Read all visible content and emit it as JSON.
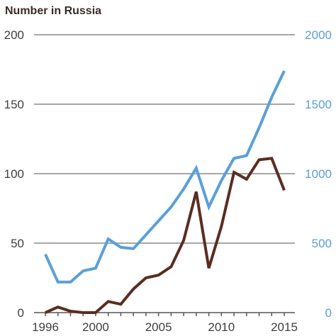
{
  "chart_data": {
    "type": "line",
    "title": "Number in Russia",
    "x": [
      1996,
      1997,
      1998,
      1999,
      2000,
      2001,
      2002,
      2003,
      2004,
      2005,
      2006,
      2007,
      2008,
      2009,
      2010,
      2011,
      2012,
      2013,
      2014,
      2015
    ],
    "x_ticks": [
      "1996",
      "2000",
      "2005",
      "2010",
      "2015"
    ],
    "xlim": [
      1996,
      2015
    ],
    "y_left": {
      "ylim": [
        0,
        200
      ],
      "ticks": [
        "0",
        "50",
        "100",
        "150",
        "200"
      ]
    },
    "y_right": {
      "ylim": [
        0,
        2000
      ],
      "ticks": [
        "0",
        "500",
        "1000",
        "1500",
        "2000"
      ]
    },
    "grid": true,
    "series": [
      {
        "axis": "left",
        "color": "#5a2e22",
        "values": [
          0,
          4,
          1,
          0,
          0,
          8,
          6,
          17,
          25,
          27,
          33,
          52,
          87,
          32,
          62,
          101,
          96,
          110,
          111,
          88
        ]
      },
      {
        "axis": "right",
        "color": "#5aa0d8",
        "values": [
          420,
          220,
          220,
          300,
          320,
          530,
          470,
          460,
          560,
          660,
          760,
          890,
          1040,
          760,
          950,
          1110,
          1130,
          1330,
          1550,
          1740
        ]
      }
    ],
    "gridline_color": "#a7a7a7",
    "axis_color": "#555555"
  }
}
